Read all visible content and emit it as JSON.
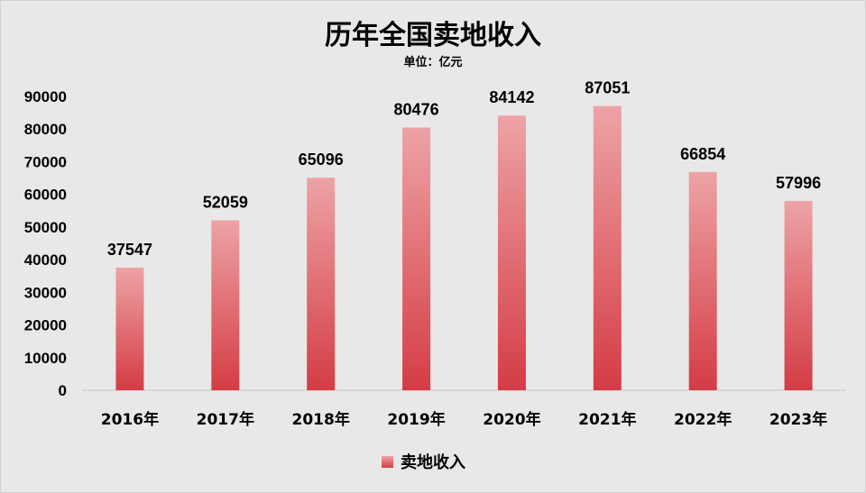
{
  "chart_data": {
    "type": "bar",
    "title": "历年全国卖地收入",
    "subtitle": "单位：亿元",
    "categories": [
      "2016年",
      "2017年",
      "2018年",
      "2019年",
      "2020年",
      "2021年",
      "2022年",
      "2023年"
    ],
    "series": [
      {
        "name": "卖地收入",
        "values": [
          37547,
          52059,
          65096,
          80476,
          84142,
          87051,
          66854,
          57996
        ]
      }
    ],
    "ylim": [
      0,
      90000
    ],
    "yticks": [
      0,
      10000,
      20000,
      30000,
      40000,
      50000,
      60000,
      70000,
      80000,
      90000
    ],
    "grid": false,
    "legend": "bottom-center",
    "colors": {
      "bar_top": "#eda3a6",
      "bar_bottom": "#d43c44",
      "background": "#e8e8e8"
    }
  }
}
